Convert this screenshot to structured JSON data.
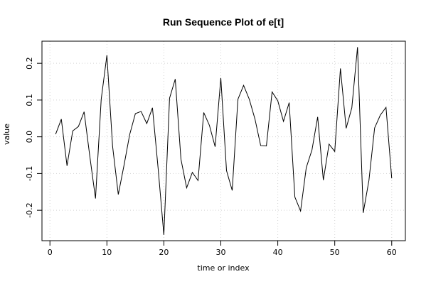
{
  "chart_data": {
    "type": "line",
    "title": "Run Sequence Plot of e[t]",
    "xlabel": "time or index",
    "ylabel": "value",
    "xlim": [
      -1.4,
      62.4
    ],
    "ylim": [
      -0.2828,
      0.2602
    ],
    "grid": true,
    "x_ticks": [
      0,
      10,
      20,
      30,
      40,
      50,
      60
    ],
    "x_tick_labels": [
      "0",
      "10",
      "20",
      "30",
      "40",
      "50",
      "60"
    ],
    "y_ticks": [
      -0.2,
      -0.1,
      0.0,
      0.1,
      0.2
    ],
    "y_tick_labels": [
      "-0.2",
      "-0.1",
      "0.0",
      "0.1",
      "0.2"
    ],
    "x": [
      1,
      2,
      3,
      4,
      5,
      6,
      7,
      8,
      9,
      10,
      11,
      12,
      13,
      14,
      15,
      16,
      17,
      18,
      19,
      20,
      21,
      22,
      23,
      24,
      25,
      26,
      27,
      28,
      29,
      30,
      31,
      32,
      33,
      34,
      35,
      36,
      37,
      38,
      39,
      40,
      41,
      42,
      43,
      44,
      45,
      46,
      47,
      48,
      49,
      50,
      51,
      52,
      53,
      54,
      55,
      56,
      57,
      58,
      59,
      60
    ],
    "values": [
      0.007,
      0.048,
      -0.079,
      0.016,
      0.028,
      0.068,
      -0.053,
      -0.168,
      0.102,
      0.222,
      -0.026,
      -0.157,
      -0.078,
      0.006,
      0.063,
      0.069,
      0.036,
      0.079,
      -0.087,
      -0.267,
      0.105,
      0.157,
      -0.061,
      -0.139,
      -0.097,
      -0.119,
      0.066,
      0.031,
      -0.027,
      0.16,
      -0.092,
      -0.146,
      0.102,
      0.14,
      0.102,
      0.048,
      -0.024,
      -0.025,
      0.122,
      0.098,
      0.042,
      0.093,
      -0.164,
      -0.202,
      -0.084,
      -0.036,
      0.054,
      -0.118,
      -0.02,
      -0.04,
      0.186,
      0.023,
      0.079,
      0.244,
      -0.207,
      -0.119,
      0.024,
      0.059,
      0.08,
      -0.113
    ],
    "line_color": "#000000",
    "grid_color": "#d3d3d3"
  }
}
